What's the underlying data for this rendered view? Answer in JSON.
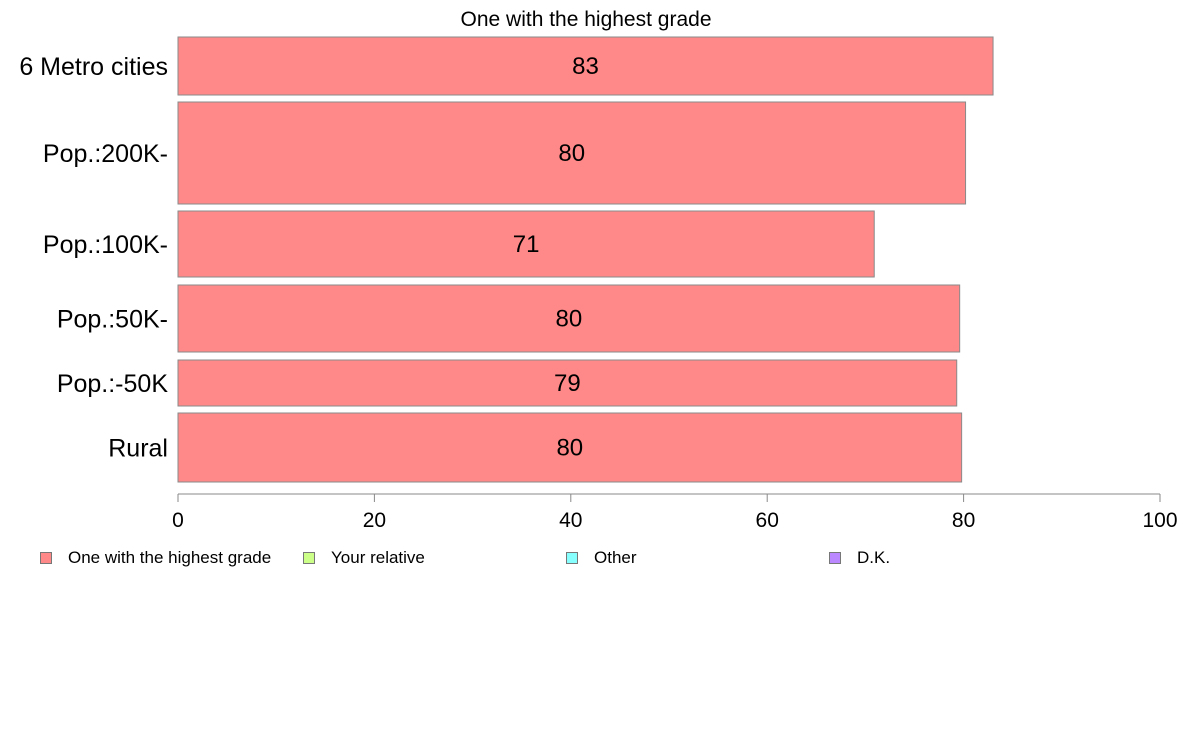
{
  "chart_data": {
    "type": "bar",
    "orientation": "horizontal",
    "title": "One with the highest grade",
    "categories": [
      "6 Metro cities",
      "Pop.:200K-",
      "Pop.:100K-",
      "Pop.:50K-",
      "Pop.:-50K",
      "Rural"
    ],
    "series": [
      {
        "name": "One with the highest grade",
        "values": [
          83,
          80.2,
          70.9,
          79.6,
          79.3,
          79.8
        ],
        "labels": [
          "83",
          "80",
          "71",
          "80",
          "79",
          "80"
        ],
        "color": "#ff8888"
      }
    ],
    "xlim": [
      0,
      100
    ],
    "xticks": [
      "0",
      "20",
      "40",
      "60",
      "80",
      "100"
    ],
    "grid": false,
    "legend": {
      "placement": "bottom",
      "items": [
        {
          "label": "One with the highest grade",
          "color": "#ff8888"
        },
        {
          "label": "Your relative",
          "color": "#ccff88"
        },
        {
          "label": "Other",
          "color": "#88ffff"
        },
        {
          "label": "D.K.",
          "color": "#bb88ff"
        }
      ]
    }
  }
}
